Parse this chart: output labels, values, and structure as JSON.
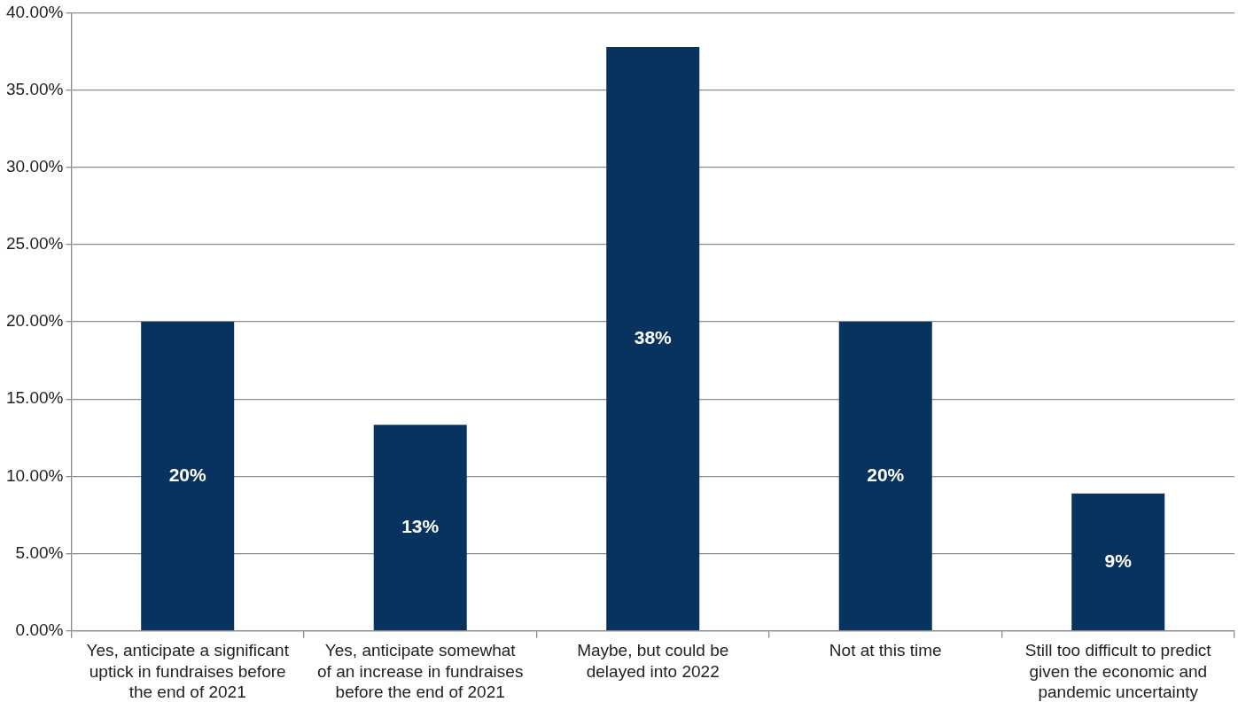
{
  "chart_data": {
    "type": "bar",
    "categories": [
      "Yes, anticipate a significant uptick in fundraises before the end of 2021",
      "Yes, anticipate somewhat of an increase in fundraises before the end of 2021",
      "Maybe, but could be delayed into 2022",
      "Not at this time",
      "Still too difficult to predict given the economic and pandemic uncertainty"
    ],
    "values": [
      20,
      13.33,
      37.78,
      20,
      8.89
    ],
    "value_labels": [
      "20%",
      "13%",
      "38%",
      "20%",
      "9%"
    ],
    "color": "#08335e",
    "ylim": [
      0,
      40
    ],
    "yticks": [
      {
        "value": 0,
        "label": "0.00%"
      },
      {
        "value": 5,
        "label": "5.00%"
      },
      {
        "value": 10,
        "label": "10.00%"
      },
      {
        "value": 15,
        "label": "15.00%"
      },
      {
        "value": 20,
        "label": "20.00%"
      },
      {
        "value": 25,
        "label": "25.00%"
      },
      {
        "value": 30,
        "label": "30.00%"
      },
      {
        "value": 35,
        "label": "35.00%"
      },
      {
        "value": 40,
        "label": "40.00%"
      }
    ],
    "grid": "y",
    "legend": false
  }
}
